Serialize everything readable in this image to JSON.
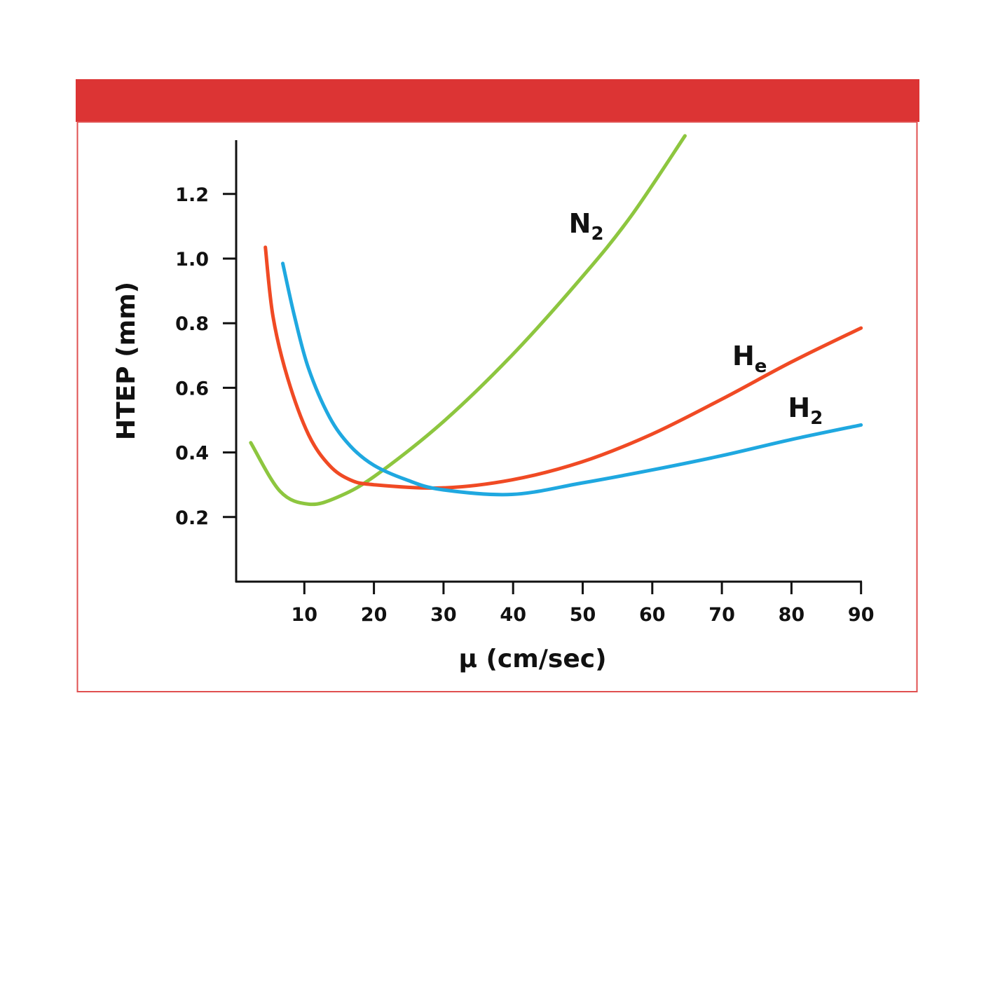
{
  "chart_data": {
    "type": "line",
    "title": "",
    "xlabel": "μ (cm/sec)",
    "ylabel": "HTEP (mm)",
    "xlim": [
      0,
      90
    ],
    "ylim": [
      0,
      1.35
    ],
    "xticks": [
      10,
      20,
      30,
      40,
      50,
      60,
      70,
      80,
      90
    ],
    "xtick_labels": [
      "10",
      "20",
      "30",
      "40",
      "50",
      "60",
      "70",
      "80",
      "90"
    ],
    "yticks": [
      0.2,
      0.4,
      0.6,
      0.8,
      1.0,
      1.2
    ],
    "ytick_labels": [
      "0.2",
      "0.4",
      "0.6",
      "0.8",
      "1.0",
      "1.2"
    ],
    "grid": false,
    "header_color": "#dc3434",
    "border_color": "#e05050",
    "series": [
      {
        "name": "N2",
        "label_main": "N",
        "label_sub": "2",
        "color": "#8dc63f",
        "label_at": [
          48,
          1.08
        ],
        "x": [
          2.3,
          6.5,
          10.6,
          14.6,
          20,
          29.7,
          39.8,
          49.8,
          56.9,
          64.7
        ],
        "y": [
          0.43,
          0.28,
          0.24,
          0.26,
          0.325,
          0.49,
          0.7,
          0.94,
          1.13,
          1.38
        ]
      },
      {
        "name": "He",
        "label_main": "H",
        "label_sub": "e",
        "color": "#f04a24",
        "label_at": [
          71.5,
          0.67
        ],
        "x": [
          4.4,
          5.5,
          7.6,
          10.6,
          13.6,
          16.6,
          20,
          29.7,
          39.8,
          49.8,
          59.8,
          70,
          80,
          90
        ],
        "y": [
          1.035,
          0.82,
          0.63,
          0.455,
          0.36,
          0.315,
          0.3,
          0.29,
          0.315,
          0.37,
          0.455,
          0.565,
          0.68,
          0.785
        ]
      },
      {
        "name": "H2",
        "label_main": "H",
        "label_sub": "2",
        "color": "#1fa8e0",
        "label_at": [
          79.5,
          0.51
        ],
        "x": [
          6.9,
          8.6,
          10.6,
          13.6,
          16.6,
          20,
          24.7,
          29.7,
          39.8,
          49.8,
          59.8,
          70,
          80,
          90
        ],
        "y": [
          0.985,
          0.82,
          0.66,
          0.51,
          0.42,
          0.36,
          0.315,
          0.285,
          0.27,
          0.305,
          0.345,
          0.39,
          0.44,
          0.485
        ]
      }
    ]
  }
}
